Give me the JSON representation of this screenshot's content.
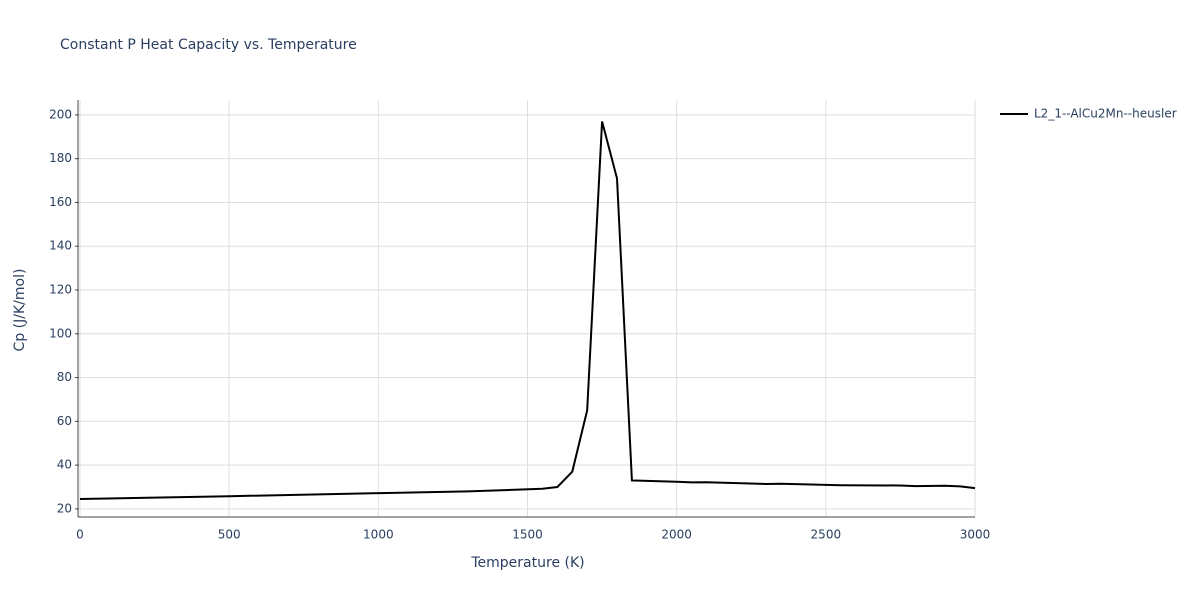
{
  "chart_data": {
    "type": "line",
    "title": "Constant P Heat Capacity vs. Temperature",
    "x_label": "Temperature (K)",
    "y_label": "Cp (J/K/mol)",
    "x": [
      0,
      500,
      1000,
      1300,
      1550,
      1600,
      1650,
      1700,
      1750,
      1800,
      1850,
      1900,
      2000,
      2050,
      2100,
      2300,
      2350,
      2550,
      2750,
      2800,
      2900,
      2950,
      3000
    ],
    "series": [
      {
        "name": "L2_1--AlCu2Mn--heusler",
        "color": "#000000",
        "values": [
          24.5,
          25.8,
          27.2,
          28,
          29.2,
          30,
          37,
          65,
          197,
          171,
          33,
          32.8,
          32.4,
          32.1,
          32.2,
          31.4,
          31.5,
          30.8,
          30.7,
          30.4,
          30.6,
          30.3,
          29.5
        ]
      }
    ],
    "xlim": [
      0,
      3000
    ],
    "xticks": [
      0,
      500,
      1000,
      1500,
      2000,
      2500,
      3000
    ],
    "ylim": [
      16.3,
      206.8
    ],
    "yticks": [
      20,
      40,
      60,
      80,
      100,
      120,
      140,
      160,
      180,
      200
    ],
    "grid": true,
    "legend": "right"
  }
}
